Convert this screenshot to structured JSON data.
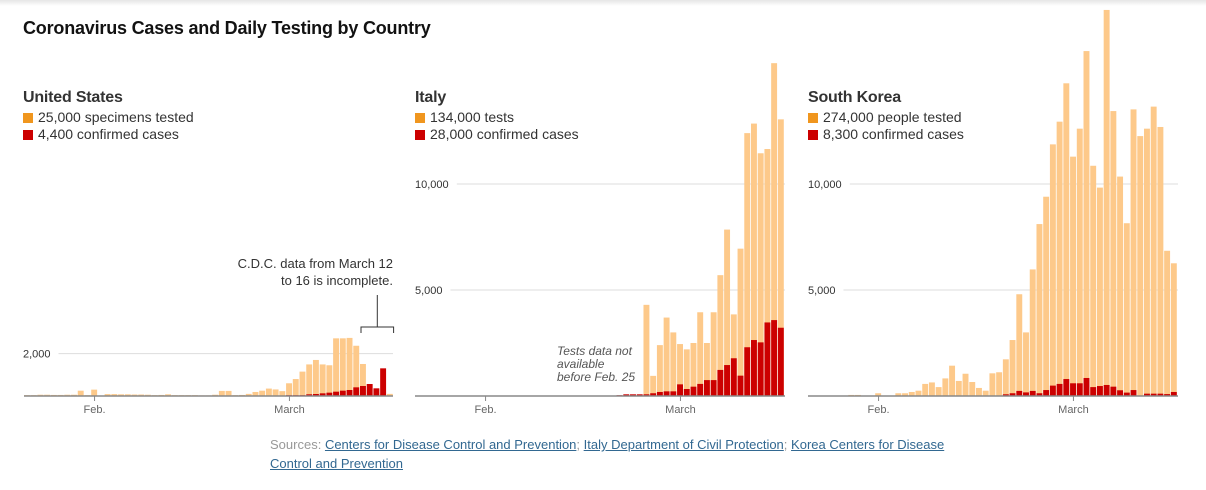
{
  "title": "Coronavirus Cases and Daily Testing by Country",
  "colors": {
    "tests_bar": "#fdc98a",
    "cases_bar": "#cc0000",
    "tests_swatch": "#f0961e",
    "cases_swatch": "#cc0000",
    "gridline": "#dddddd",
    "baseline": "#888888",
    "link": "#326891"
  },
  "sources": {
    "label": "Sources:",
    "links": [
      {
        "text": "Centers for Disease Control and Prevention",
        "sep": ";"
      },
      {
        "text": "Italy Department of Civil Protection",
        "sep": ";"
      },
      {
        "text": "Korea Centers for Disease Control and Prevention",
        "sep": ""
      }
    ]
  },
  "chart_data": [
    {
      "type": "bar",
      "stacked": "overlay",
      "title": "United States",
      "legend": [
        {
          "label": "25,000 specimens tested",
          "series": "tests"
        },
        {
          "label": "4,400 confirmed cases",
          "series": "cases"
        }
      ],
      "x_start": "Jan 22",
      "x_end": "Mar 16",
      "x_ticks": [
        {
          "label": "Feb.",
          "day_index": 10
        },
        {
          "label": "March",
          "day_index": 39
        }
      ],
      "y_ticks": [
        {
          "value": 2000,
          "label": "2,000"
        }
      ],
      "grid": true,
      "annotation": {
        "lines": [
          "C.D.C. data from March 12",
          "to 16 is incomplete."
        ],
        "from_day_index": 50,
        "to_day_index": 54
      },
      "series": [
        {
          "name": "tests",
          "values": [
            40,
            40,
            60,
            60,
            50,
            50,
            60,
            60,
            250,
            40,
            300,
            0,
            90,
            90,
            80,
            80,
            70,
            70,
            60,
            40,
            50,
            80,
            40,
            40,
            40,
            40,
            30,
            30,
            60,
            240,
            240,
            40,
            50,
            100,
            190,
            250,
            350,
            310,
            230,
            600,
            800,
            1150,
            1490,
            1700,
            1490,
            1450,
            2720,
            2720,
            2740,
            2370,
            1510,
            100,
            100,
            100,
            100
          ]
        },
        {
          "name": "cases",
          "values": [
            0,
            0,
            0,
            0,
            0,
            0,
            0,
            0,
            0,
            0,
            0,
            0,
            0,
            0,
            0,
            0,
            0,
            0,
            0,
            0,
            0,
            0,
            0,
            0,
            0,
            0,
            0,
            0,
            0,
            0,
            0,
            0,
            0,
            0,
            0,
            0,
            0,
            0,
            0,
            10,
            20,
            40,
            80,
            94,
            126,
            157,
            204,
            252,
            283,
            409,
            472,
            566,
            362,
            1305,
            0
          ]
        }
      ]
    },
    {
      "type": "bar",
      "stacked": "overlay",
      "title": "Italy",
      "legend": [
        {
          "label": "134,000 tests",
          "series": "tests"
        },
        {
          "label": "28,000 confirmed cases",
          "series": "cases"
        }
      ],
      "x_start": "Jan 22",
      "x_end": "Mar 16",
      "x_ticks": [
        {
          "label": "Feb.",
          "day_index": 10
        },
        {
          "label": "March",
          "day_index": 39
        }
      ],
      "y_ticks": [
        {
          "value": 5000,
          "label": "5,000"
        },
        {
          "value": 10000,
          "label": "10,000"
        }
      ],
      "grid": true,
      "annotation": {
        "lines": [
          "Tests data not",
          "available",
          "before Feb. 25"
        ]
      },
      "series": [
        {
          "name": "tests",
          "values": [
            0,
            0,
            0,
            0,
            0,
            0,
            0,
            0,
            0,
            0,
            0,
            0,
            0,
            0,
            0,
            0,
            0,
            0,
            0,
            0,
            0,
            0,
            0,
            0,
            0,
            0,
            0,
            0,
            0,
            0,
            0,
            0,
            0,
            0,
            4300,
            950,
            2400,
            3700,
            3000,
            2450,
            2200,
            2500,
            3950,
            2500,
            3950,
            5700,
            7850,
            3850,
            6950,
            12400,
            12850,
            11450,
            11650,
            15700,
            13050
          ]
        },
        {
          "name": "cases",
          "values": [
            0,
            0,
            0,
            0,
            0,
            0,
            0,
            0,
            0,
            0,
            0,
            0,
            0,
            0,
            0,
            0,
            0,
            0,
            0,
            0,
            0,
            0,
            0,
            0,
            0,
            0,
            0,
            0,
            0,
            0,
            30,
            80,
            80,
            80,
            80,
            130,
            190,
            220,
            220,
            550,
            330,
            440,
            570,
            750,
            750,
            1230,
            1460,
            1780,
            960,
            2300,
            2640,
            2530,
            3470,
            3580,
            3220
          ]
        }
      ]
    },
    {
      "type": "bar",
      "stacked": "overlay",
      "title": "South Korea",
      "legend": [
        {
          "label": "274,000 people tested",
          "series": "tests"
        },
        {
          "label": "8,300 confirmed cases",
          "series": "cases"
        }
      ],
      "x_start": "Jan 22",
      "x_end": "Mar 16",
      "x_ticks": [
        {
          "label": "Feb.",
          "day_index": 10
        },
        {
          "label": "March",
          "day_index": 39
        }
      ],
      "y_ticks": [
        {
          "value": 5000,
          "label": "5,000"
        },
        {
          "value": 10000,
          "label": "10,000"
        }
      ],
      "grid": true,
      "series": [
        {
          "name": "tests",
          "values": [
            0,
            0,
            0,
            0,
            0,
            0,
            50,
            50,
            0,
            0,
            130,
            20,
            0,
            130,
            130,
            190,
            250,
            570,
            640,
            420,
            830,
            1430,
            710,
            1050,
            660,
            380,
            250,
            1070,
            1120,
            1730,
            2640,
            4800,
            3000,
            5970,
            8110,
            9400,
            11870,
            12940,
            14750,
            11290,
            12610,
            16270,
            10860,
            9830,
            18210,
            13440,
            10350,
            8150,
            13520,
            12260,
            12610,
            13650,
            12690,
            6850,
            6260
          ]
        },
        {
          "name": "cases",
          "values": [
            0,
            0,
            0,
            0,
            0,
            0,
            0,
            0,
            0,
            0,
            0,
            0,
            0,
            0,
            0,
            0,
            0,
            0,
            0,
            0,
            0,
            0,
            0,
            0,
            0,
            0,
            0,
            0,
            0,
            80,
            130,
            240,
            170,
            240,
            130,
            280,
            490,
            570,
            800,
            600,
            600,
            850,
            420,
            470,
            520,
            440,
            270,
            160,
            280,
            0,
            110,
            110,
            110,
            90,
            190
          ]
        }
      ]
    }
  ]
}
